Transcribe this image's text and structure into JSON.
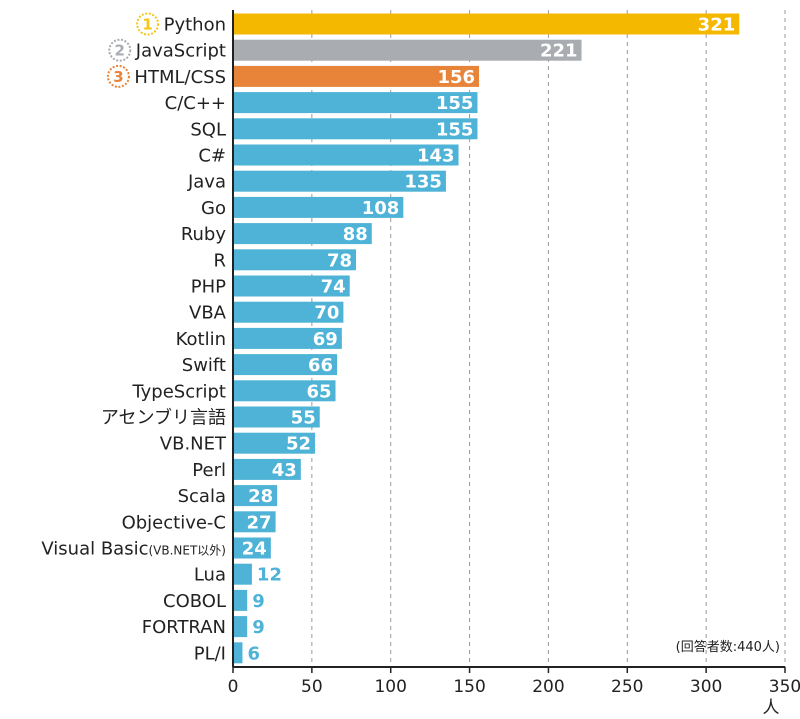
{
  "chart_data": {
    "type": "bar",
    "orientation": "horizontal",
    "categories": [
      "Python",
      "JavaScript",
      "HTML/CSS",
      "C/C++",
      "SQL",
      "C#",
      "Java",
      "Go",
      "Ruby",
      "R",
      "PHP",
      "VBA",
      "Kotlin",
      "Swift",
      "TypeScript",
      "アセンブリ言語",
      "VB.NET",
      "Perl",
      "Scala",
      "Objective-C",
      "Visual Basic",
      "Lua",
      "COBOL",
      "FORTRAN",
      "PL/I"
    ],
    "category_suffix": {
      "Visual Basic": "(VB.NET以外)"
    },
    "values": [
      321,
      221,
      156,
      155,
      155,
      143,
      135,
      108,
      88,
      78,
      74,
      70,
      69,
      66,
      65,
      55,
      52,
      43,
      28,
      27,
      24,
      12,
      9,
      9,
      6
    ],
    "ranks": [
      {
        "category": "Python",
        "rank": "1",
        "color": "#f5c518"
      },
      {
        "category": "JavaScript",
        "rank": "2",
        "color": "#a9acb1"
      },
      {
        "category": "HTML/CSS",
        "rank": "3",
        "color": "#e8843a"
      }
    ],
    "bar_colors": {
      "default": "#4eb3d6",
      "1": "#f5b800",
      "2": "#a9acb1",
      "3": "#e8843a"
    },
    "xlim": [
      0,
      350
    ],
    "xticks": [
      0,
      50,
      100,
      150,
      200,
      250,
      300,
      350
    ],
    "xunit": "人",
    "note": "(回答者数:440人)",
    "grid": "vertical-dashed",
    "legend": "none"
  }
}
